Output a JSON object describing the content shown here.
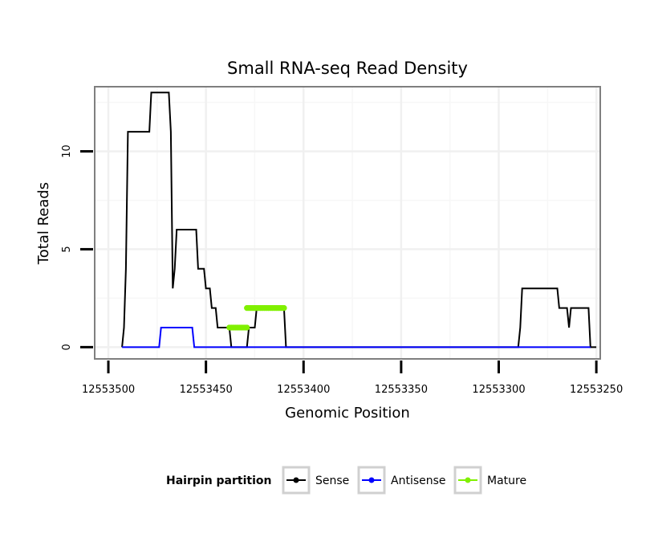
{
  "chart_data": {
    "type": "line",
    "title": "Small RNA-seq Read Density",
    "xlabel": "Genomic Position",
    "ylabel": "Total Reads",
    "x_reversed": true,
    "xlim": [
      12553507,
      12553248
    ],
    "ylim": [
      -0.6,
      13.3
    ],
    "x_ticks": [
      12553500,
      12553450,
      12553400,
      12553350,
      12553300,
      12553250
    ],
    "x_tick_labels": [
      "12553500",
      "12553450",
      "12553400",
      "12553350",
      "12553300",
      "12553250"
    ],
    "y_ticks": [
      0,
      5,
      10
    ],
    "y_tick_labels": [
      "0",
      "5",
      "10"
    ],
    "grid": true,
    "legend": {
      "title": "Hairpin partition",
      "position": "bottom",
      "entries": [
        "Sense",
        "Antisense",
        "Mature"
      ]
    },
    "series": [
      {
        "name": "Sense",
        "color": "#000000",
        "x": [
          12553493,
          12553492,
          12553491,
          12553490,
          12553479,
          12553478,
          12553469,
          12553468,
          12553467,
          12553466,
          12553465,
          12553464,
          12553455,
          12553454,
          12553451,
          12553450,
          12553448,
          12553447,
          12553445,
          12553444,
          12553438,
          12553437,
          12553429,
          12553428,
          12553425,
          12553424,
          12553423,
          12553422,
          12553421,
          12553410,
          12553409,
          12553290,
          12553289,
          12553288,
          12553270,
          12553269,
          12553265,
          12553264,
          12553263,
          12553262,
          12553254,
          12553253,
          12553250
        ],
        "values": [
          0,
          1,
          4,
          11,
          11,
          13,
          13,
          11,
          3,
          4,
          6,
          6,
          6,
          4,
          4,
          3,
          3,
          2,
          2,
          1,
          1,
          0,
          0,
          1,
          1,
          2,
          2,
          2,
          2,
          2,
          0,
          0,
          1,
          3,
          3,
          2,
          2,
          1,
          2,
          2,
          2,
          0,
          0
        ]
      },
      {
        "name": "Antisense",
        "color": "#0000ff",
        "x": [
          12553493,
          12553474,
          12553473,
          12553457,
          12553456,
          12553253
        ],
        "values": [
          0,
          0,
          1,
          1,
          0,
          0
        ]
      },
      {
        "name": "Mature",
        "color": "#80f000",
        "segments": [
          {
            "x_start": 12553438,
            "x_end": 12553429,
            "value": 1
          },
          {
            "x_start": 12553429,
            "x_end": 12553410,
            "value": 2
          }
        ]
      }
    ]
  }
}
